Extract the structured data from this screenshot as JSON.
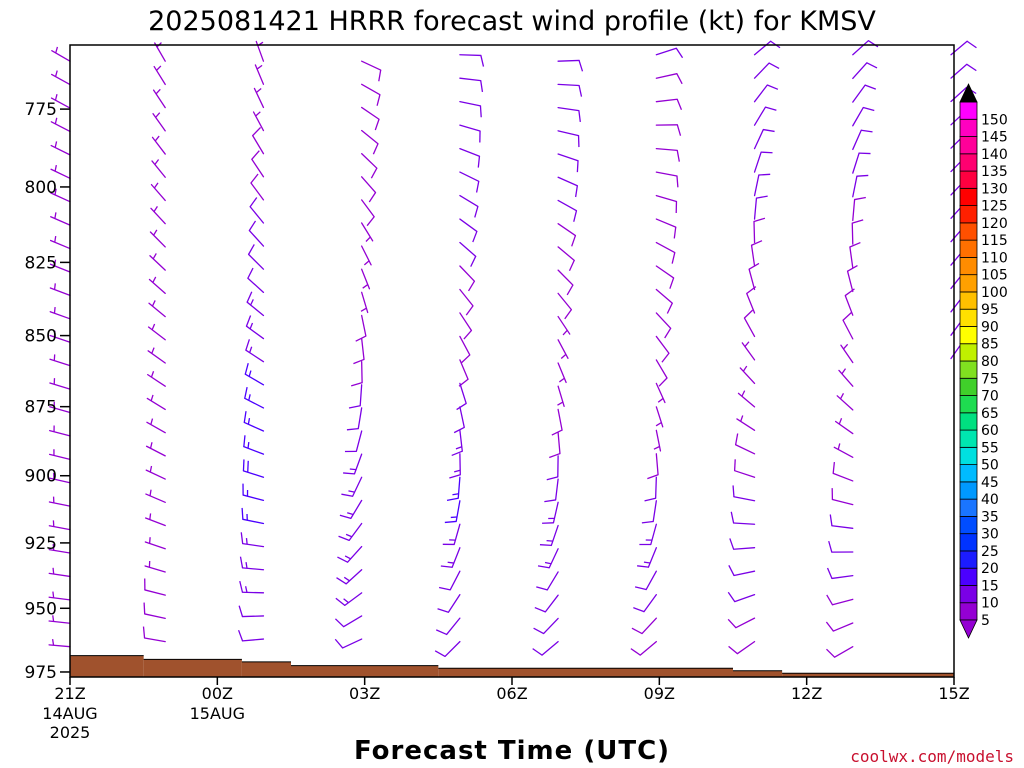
{
  "chart_data": {
    "type": "wind-barb-profile",
    "title": "2025081421 HRRR forecast wind profile (kt) for KMSV",
    "xlabel": "Forecast Time (UTC)",
    "ylabel": "",
    "credit": "coolwx.com/models",
    "units": "kt",
    "x_hours_range": [
      0,
      18
    ],
    "ylim": [
      977,
      755
    ],
    "x_ticks": [
      {
        "hour": 0,
        "label": "21Z",
        "date1": "14AUG",
        "date2": "2025"
      },
      {
        "hour": 3,
        "label": "00Z",
        "date1": "15AUG",
        "date2": ""
      },
      {
        "hour": 6,
        "label": "03Z",
        "date1": "",
        "date2": ""
      },
      {
        "hour": 9,
        "label": "06Z",
        "date1": "",
        "date2": ""
      },
      {
        "hour": 12,
        "label": "09Z",
        "date1": "",
        "date2": ""
      },
      {
        "hour": 15,
        "label": "12Z",
        "date1": "",
        "date2": ""
      },
      {
        "hour": 18,
        "label": "15Z",
        "date1": "",
        "date2": ""
      }
    ],
    "y_ticks": [
      775,
      800,
      825,
      850,
      875,
      900,
      925,
      950,
      975
    ],
    "colorbar_levels": [
      5,
      10,
      15,
      20,
      25,
      30,
      35,
      40,
      45,
      50,
      55,
      60,
      65,
      70,
      75,
      80,
      85,
      90,
      95,
      100,
      105,
      110,
      115,
      120,
      125,
      130,
      135,
      140,
      145,
      150
    ],
    "colorbar_colors": [
      "#9400d3",
      "#7a00e6",
      "#4b00ff",
      "#1c1cff",
      "#0033ff",
      "#004dff",
      "#1a75ff",
      "#0099ff",
      "#00bbff",
      "#00e0e0",
      "#00e6b0",
      "#00e080",
      "#1edc50",
      "#40d02a",
      "#80e020",
      "#c0f000",
      "#ffff00",
      "#ffe000",
      "#ffc000",
      "#ffa000",
      "#ff8c00",
      "#ff7000",
      "#ff5000",
      "#ff2000",
      "#ff0000",
      "#ff0040",
      "#ff0070",
      "#ff0099",
      "#ff00c0",
      "#ff00ff"
    ],
    "colorbar_min_color": "#9400d3",
    "colorbar_max_color": "#000000",
    "terrain_color": "#a0522d",
    "terrain": [
      {
        "hour_start": 0,
        "hour_end": 1.5,
        "pressure": 968.5
      },
      {
        "hour_start": 1.5,
        "hour_end": 3.5,
        "pressure": 970
      },
      {
        "hour_start": 3.5,
        "hour_end": 4.5,
        "pressure": 971
      },
      {
        "hour_start": 4.5,
        "hour_end": 7.5,
        "pressure": 972.5
      },
      {
        "hour_start": 7.5,
        "hour_end": 13.5,
        "pressure": 973.5
      },
      {
        "hour_start": 13.5,
        "hour_end": 14.5,
        "pressure": 974.5
      },
      {
        "hour_start": 14.5,
        "hour_end": 18,
        "pressure": 975.5
      }
    ],
    "profiles": [
      {
        "hour": 0,
        "p_top": 760,
        "p_bottom": 965,
        "dir_top": 300,
        "dir_bottom": 275,
        "spd_top": 4,
        "spd_bottom": 4,
        "speed_levels": []
      },
      {
        "hour": 2,
        "p_top": 760,
        "p_bottom": 963,
        "dir_top": 330,
        "dir_bottom": 280,
        "spd_top": 4,
        "spd_bottom": 8,
        "speed_levels": []
      },
      {
        "hour": 4,
        "p_top": 760,
        "p_bottom": 962,
        "dir_top": 340,
        "dir_bottom": 265,
        "spd_top": 4,
        "spd_bottom": 18,
        "speed_levels": [
          [
            960,
            11
          ],
          [
            900,
            18
          ],
          [
            800,
            9
          ],
          [
            760,
            4
          ]
        ]
      },
      {
        "hour": 6,
        "p_top": 760,
        "p_bottom": 962,
        "dir_top": 115,
        "dir_bottom": 245,
        "spd_top": 9,
        "spd_bottom": 12,
        "speed_levels": [
          [
            960,
            12
          ],
          [
            900,
            14
          ],
          [
            850,
            9
          ],
          [
            830,
            5
          ],
          [
            800,
            8
          ],
          [
            760,
            9
          ]
        ]
      },
      {
        "hour": 8,
        "p_top": 758,
        "p_bottom": 963,
        "dir_top": 92,
        "dir_bottom": 225,
        "spd_top": 11,
        "spd_bottom": 16,
        "speed_levels": [
          [
            960,
            10
          ],
          [
            900,
            16
          ],
          [
            850,
            8
          ],
          [
            820,
            10
          ],
          [
            760,
            11
          ]
        ]
      },
      {
        "hour": 10,
        "p_top": 760,
        "p_bottom": 963,
        "dir_top": 88,
        "dir_bottom": 230,
        "spd_top": 12,
        "spd_bottom": 14,
        "speed_levels": [
          [
            960,
            10
          ],
          [
            920,
            14
          ],
          [
            860,
            6
          ],
          [
            800,
            11
          ],
          [
            760,
            12
          ]
        ]
      },
      {
        "hour": 12,
        "p_top": 758,
        "p_bottom": 963,
        "dir_top": 72,
        "dir_bottom": 230,
        "spd_top": 10,
        "spd_bottom": 14,
        "speed_levels": [
          [
            960,
            9
          ],
          [
            920,
            14
          ],
          [
            880,
            6
          ],
          [
            850,
            9
          ],
          [
            760,
            10
          ]
        ]
      },
      {
        "hour": 14,
        "p_top": 758,
        "p_bottom": 963,
        "dir_top": 50,
        "dir_bottom": 235,
        "spd_top": 12,
        "spd_bottom": 12,
        "speed_levels": [
          [
            960,
            9
          ],
          [
            920,
            12
          ],
          [
            870,
            5
          ],
          [
            840,
            9
          ],
          [
            760,
            12
          ]
        ]
      },
      {
        "hour": 16,
        "p_top": 758,
        "p_bottom": 965,
        "dir_top": 48,
        "dir_bottom": 240,
        "spd_top": 12,
        "spd_bottom": 11,
        "speed_levels": [
          [
            960,
            9
          ],
          [
            920,
            11
          ],
          [
            880,
            5
          ],
          [
            850,
            8
          ],
          [
            760,
            12
          ]
        ]
      },
      {
        "hour": 18,
        "p_top": 758,
        "p_bottom": 858,
        "dir_top": 50,
        "dir_bottom": 35,
        "spd_top": 12,
        "spd_bottom": 12,
        "speed_levels": []
      }
    ]
  }
}
